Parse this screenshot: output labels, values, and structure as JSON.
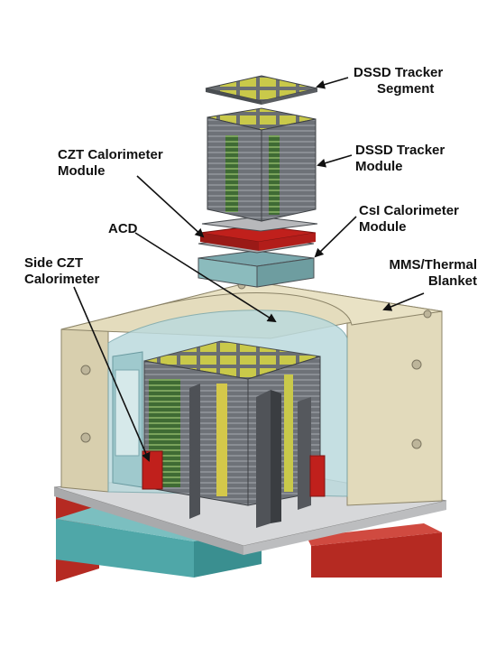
{
  "labels": {
    "dssd_segment": [
      "DSSD Tracker",
      "Segment"
    ],
    "dssd_module": [
      "DSSD Tracker",
      "Module"
    ],
    "czt_module": [
      "CZT Calorimeter",
      "Module"
    ],
    "csi_module": [
      "CsI Calorimeter",
      "Module"
    ],
    "acd": "ACD",
    "side_czt": [
      "Side CZT",
      "Calorimeter"
    ],
    "mms": [
      "MMS/Thermal",
      "Blanket"
    ]
  },
  "colors": {
    "housing": "#e0d8b8",
    "housing_dark": "#c9bf9c",
    "tracker_frame": "#5c6066",
    "tracker_pad": "#c9c94a",
    "tracker_green": "#4e8a3a",
    "czt_red": "#c0201c",
    "acd_glass": "#b9d9dc",
    "base_plate": "#cfd0d2",
    "teal_box": "#4fa7a8"
  }
}
